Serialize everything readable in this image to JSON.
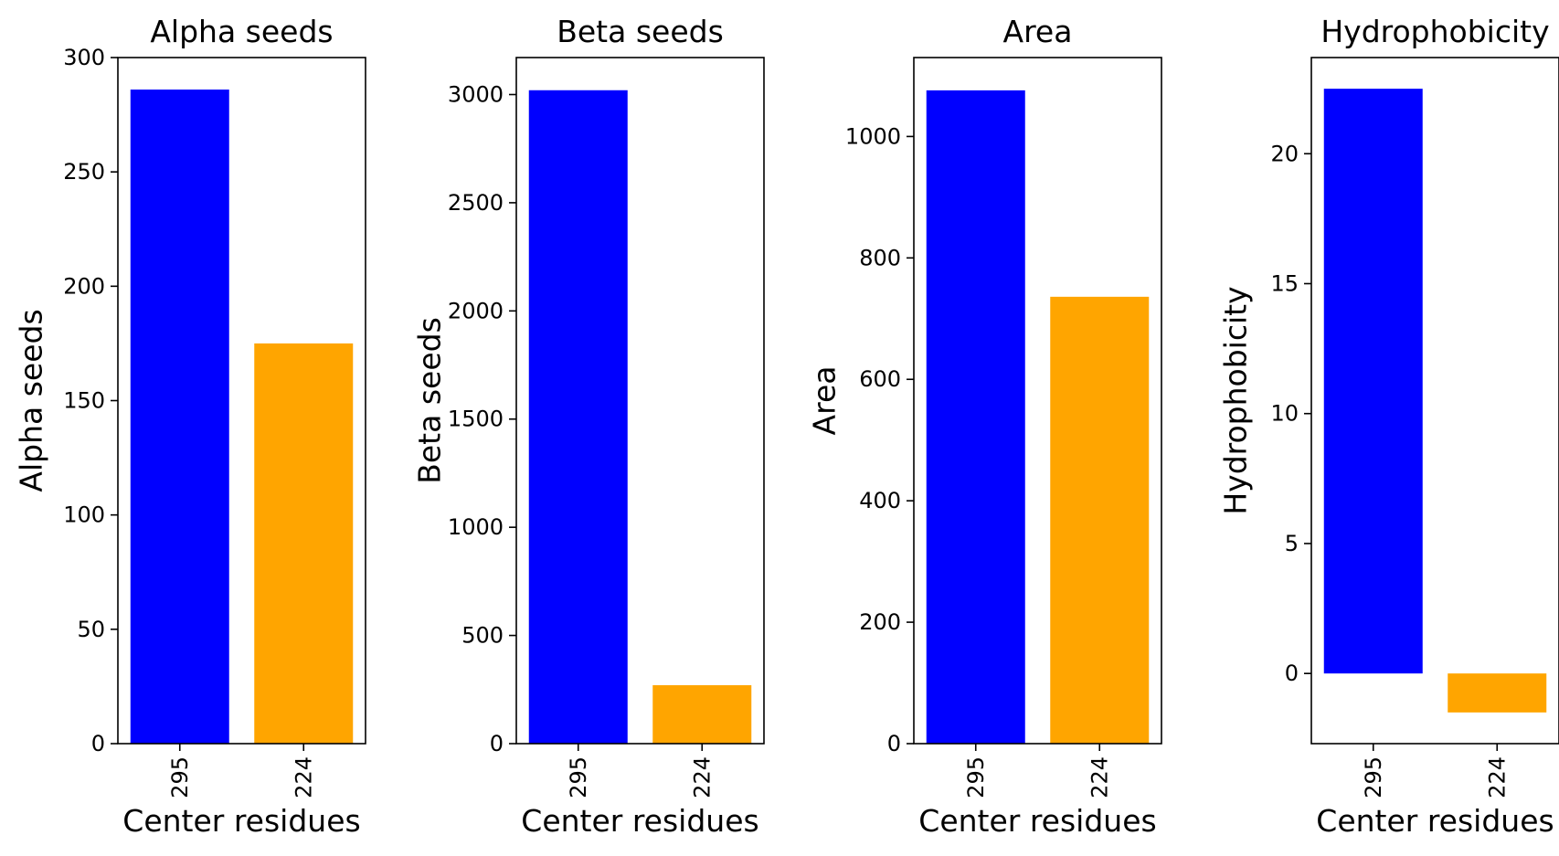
{
  "chart_data": [
    {
      "type": "bar",
      "title": "Alpha seeds",
      "xlabel": "Center residues",
      "ylabel": "Alpha seeds",
      "categories": [
        "295",
        "224"
      ],
      "values": [
        286,
        175
      ],
      "colors": [
        "#0000ff",
        "#ffa500"
      ],
      "ylim": [
        0,
        300
      ],
      "yticks": [
        0,
        50,
        100,
        150,
        200,
        250,
        300
      ],
      "xtick_rotation": 90,
      "grid": false
    },
    {
      "type": "bar",
      "title": "Beta seeds",
      "xlabel": "Center residues",
      "ylabel": "Beta seeds",
      "categories": [
        "295",
        "224"
      ],
      "values": [
        3020,
        270
      ],
      "colors": [
        "#0000ff",
        "#ffa500"
      ],
      "ylim": [
        0,
        3171
      ],
      "yticks": [
        0,
        500,
        1000,
        1500,
        2000,
        2500,
        3000
      ],
      "xtick_rotation": 90,
      "grid": false
    },
    {
      "type": "bar",
      "title": "Area",
      "xlabel": "Center residues",
      "ylabel": "Area",
      "categories": [
        "295",
        "224"
      ],
      "values": [
        1076,
        736
      ],
      "colors": [
        "#0000ff",
        "#ffa500"
      ],
      "ylim": [
        0,
        1130
      ],
      "yticks": [
        0,
        200,
        400,
        600,
        800,
        1000
      ],
      "xtick_rotation": 90,
      "grid": false
    },
    {
      "type": "bar",
      "title": "Hydrophobicity",
      "xlabel": "Center residues",
      "ylabel": "Hydrophobicity",
      "categories": [
        "295",
        "224"
      ],
      "values": [
        22.5,
        -1.5
      ],
      "colors": [
        "#0000ff",
        "#ffa500"
      ],
      "ylim": [
        -2.7,
        23.7
      ],
      "yticks": [
        0,
        5,
        10,
        15,
        20
      ],
      "xtick_rotation": 90,
      "grid": false
    }
  ]
}
